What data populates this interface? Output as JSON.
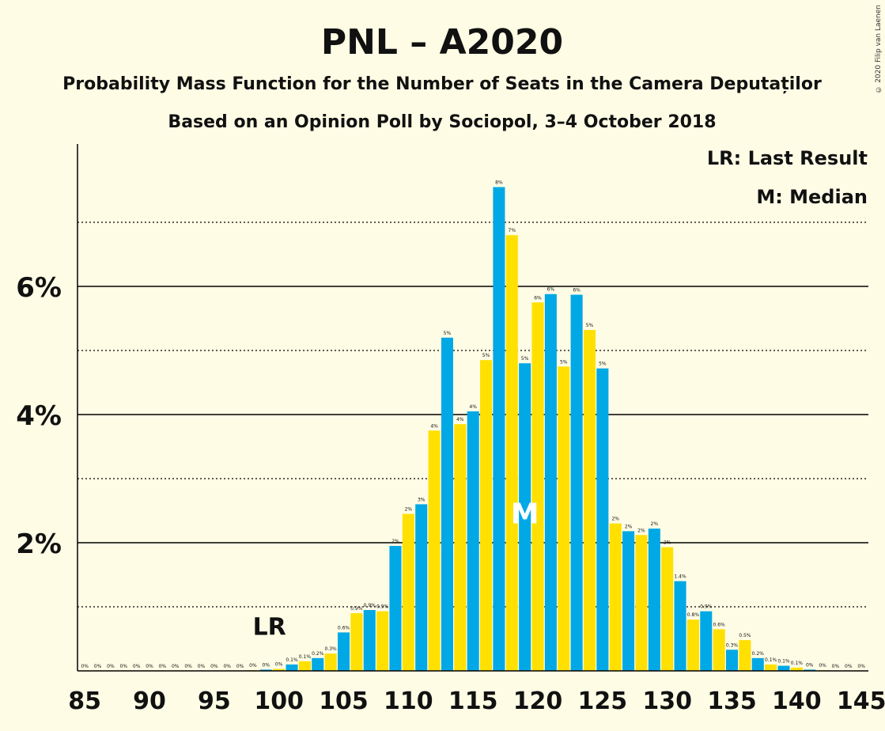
{
  "header": {
    "title": "PNL – A2020",
    "subtitle": "Probability Mass Function for the Number of Seats in the Camera Deputaților",
    "subtitle2": "Based on an Opinion Poll by Sociopol, 3–4 October 2018"
  },
  "copyright": "© 2020 Filip van Laenen",
  "legend": {
    "lr": "LR: Last Result",
    "m": "M: Median"
  },
  "colors": {
    "blue": "#00A8E6",
    "yellow": "#FFE000",
    "background": "#FFFCE5"
  },
  "chart_data": {
    "type": "bar",
    "x": [
      85,
      86,
      87,
      88,
      89,
      90,
      91,
      92,
      93,
      94,
      95,
      96,
      97,
      98,
      99,
      100,
      101,
      102,
      103,
      104,
      105,
      106,
      107,
      108,
      109,
      110,
      111,
      112,
      113,
      114,
      115,
      116,
      117,
      118,
      119,
      120,
      121,
      122,
      123,
      124,
      125,
      126,
      127,
      128,
      129,
      130,
      131,
      132,
      133,
      134,
      135,
      136,
      137,
      138,
      139,
      140,
      141,
      142,
      143,
      144,
      145
    ],
    "values": [
      0,
      0,
      0,
      0,
      0,
      0,
      0,
      0,
      0,
      0,
      0,
      0,
      0,
      0.01,
      0.02,
      0.03,
      0.1,
      0.15,
      0.2,
      0.27,
      0.6,
      0.9,
      0.95,
      0.93,
      1.95,
      2.45,
      2.6,
      3.75,
      5.2,
      3.85,
      4.05,
      4.85,
      7.55,
      6.8,
      4.8,
      5.75,
      5.88,
      4.75,
      5.87,
      5.32,
      4.72,
      2.3,
      2.18,
      2.12,
      2.22,
      1.93,
      1.4,
      0.8,
      0.93,
      0.65,
      0.33,
      0.48,
      0.2,
      0.1,
      0.08,
      0.05,
      0.02,
      0.01,
      0,
      0,
      0
    ],
    "value_labels": [
      "0%",
      "0%",
      "0%",
      "0%",
      "0%",
      "0%",
      "0%",
      "0%",
      "0%",
      "0%",
      "0%",
      "0%",
      "0%",
      "0%",
      "0%",
      "0%",
      "0.1%",
      "0.1%",
      "0.2%",
      "0.3%",
      "0.6%",
      "0.9%",
      "0.9%",
      "0.9%",
      "2%",
      "2%",
      "3%",
      "4%",
      "5%",
      "4%",
      "4%",
      "5%",
      "8%",
      "7%",
      "5%",
      "6%",
      "6%",
      "5%",
      "6%",
      "5%",
      "5%",
      "2%",
      "2%",
      "2%",
      "2%",
      "2%",
      "1.4%",
      "0.8%",
      "0.9%",
      "0.6%",
      "0.3%",
      "0.5%",
      "0.2%",
      "0.1%",
      "0.1%",
      "0.1%",
      "0%",
      "0%",
      "0%",
      "0%",
      "0%"
    ],
    "x_ticks": [
      "85",
      "90",
      "95",
      "100",
      "105",
      "110",
      "115",
      "120",
      "125",
      "130",
      "135",
      "140",
      "145"
    ],
    "y_ticks": [
      "2%",
      "4%",
      "6%"
    ],
    "ylim": [
      0,
      8
    ],
    "last_result": {
      "seat": 100,
      "label": "LR"
    },
    "median": {
      "seat": 119,
      "label": "M"
    },
    "grid": "solid at 2% steps, dotted at 1% steps"
  }
}
